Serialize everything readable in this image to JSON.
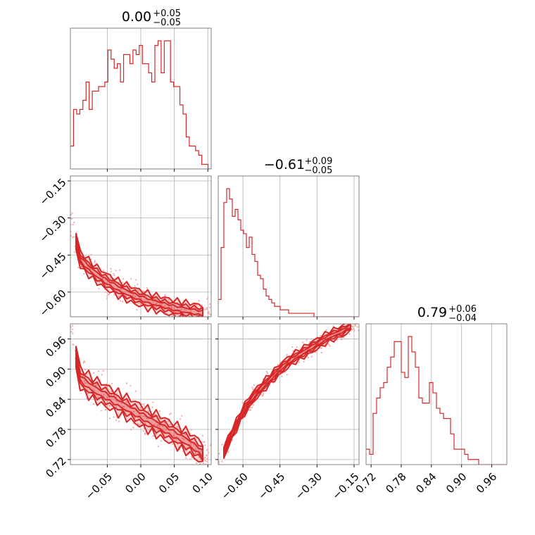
{
  "chart_data": {
    "type": "corner",
    "colors": {
      "line": "#d62728",
      "fill": "#f4c2c2",
      "frame": "#808080",
      "grid": "#b0b0b0"
    },
    "parameters": [
      {
        "title": "0.00",
        "upper": "+0.05",
        "lower": "−0.05",
        "range": [
          -0.105,
          0.105
        ],
        "ticks": [
          -0.05,
          0.0,
          0.05,
          0.1
        ],
        "tick_labels": [
          "−0.05",
          "0.00",
          "0.05",
          "0.10"
        ]
      },
      {
        "title": "−0.61",
        "upper": "+0.09",
        "lower": "−0.05",
        "range": [
          -0.7,
          -0.13
        ],
        "ticks": [
          -0.6,
          -0.45,
          -0.3,
          -0.15
        ],
        "tick_labels": [
          "−0.60",
          "−0.45",
          "−0.30",
          "−0.15"
        ]
      },
      {
        "title": "0.79",
        "upper": "+0.06",
        "lower": "−0.04",
        "range": [
          0.71,
          0.99
        ],
        "ticks": [
          0.72,
          0.78,
          0.84,
          0.9,
          0.96
        ],
        "tick_labels": [
          "0.72",
          "0.78",
          "0.84",
          "0.90",
          "0.96"
        ]
      }
    ],
    "histograms": [
      {
        "param": 0,
        "counts": [
          5,
          13,
          12,
          13,
          15,
          19,
          13,
          17,
          17,
          18,
          18,
          19,
          26,
          24,
          22,
          23,
          19,
          25,
          25,
          23,
          26,
          25,
          27,
          23,
          23,
          21,
          19,
          27,
          28,
          21,
          28,
          28,
          19,
          18,
          18,
          14,
          12,
          7,
          5,
          5,
          4,
          3,
          1,
          1,
          0
        ]
      },
      {
        "param": 1,
        "counts": [
          5,
          20,
          33,
          37,
          34,
          29,
          31,
          28,
          25,
          24,
          20,
          23,
          18,
          16,
          12,
          11,
          8,
          6,
          5,
          4,
          3,
          3,
          2,
          2,
          2,
          1,
          1,
          1,
          1,
          1,
          1,
          1,
          1,
          1,
          0,
          0,
          0,
          0,
          0,
          0,
          0,
          0,
          0,
          0,
          0,
          0,
          0,
          0,
          0,
          0
        ]
      },
      {
        "param": 2,
        "counts": [
          3,
          2,
          10,
          13,
          15,
          16,
          19,
          21,
          24,
          24,
          18,
          17,
          25,
          22,
          19,
          13,
          12,
          12,
          16,
          14,
          11,
          10,
          9,
          9,
          6,
          3,
          3,
          3,
          2,
          1,
          1,
          1,
          0,
          0,
          0,
          0,
          0,
          0,
          0,
          0
        ]
      }
    ],
    "pairs": [
      {
        "x_param": 0,
        "y_param": 1,
        "trend": [
          [
            -0.105,
            -0.3
          ],
          [
            -0.09,
            -0.47
          ],
          [
            -0.07,
            -0.52
          ],
          [
            -0.05,
            -0.56
          ],
          [
            -0.03,
            -0.59
          ],
          [
            -0.01,
            -0.615
          ],
          [
            0.01,
            -0.635
          ],
          [
            0.03,
            -0.65
          ],
          [
            0.05,
            -0.665
          ],
          [
            0.07,
            -0.675
          ],
          [
            0.09,
            -0.685
          ],
          [
            0.105,
            -0.69
          ]
        ],
        "spread": 0.018
      },
      {
        "x_param": 0,
        "y_param": 2,
        "trend": [
          [
            -0.105,
            0.98
          ],
          [
            -0.09,
            0.88
          ],
          [
            -0.07,
            0.86
          ],
          [
            -0.05,
            0.845
          ],
          [
            -0.03,
            0.83
          ],
          [
            -0.01,
            0.815
          ],
          [
            0.01,
            0.8
          ],
          [
            0.03,
            0.785
          ],
          [
            0.05,
            0.77
          ],
          [
            0.07,
            0.755
          ],
          [
            0.09,
            0.735
          ],
          [
            0.105,
            0.715
          ]
        ],
        "spread": 0.012
      },
      {
        "x_param": 1,
        "y_param": 2,
        "trend": [
          [
            -0.7,
            0.71
          ],
          [
            -0.68,
            0.73
          ],
          [
            -0.66,
            0.755
          ],
          [
            -0.64,
            0.775
          ],
          [
            -0.62,
            0.795
          ],
          [
            -0.6,
            0.815
          ],
          [
            -0.58,
            0.83
          ],
          [
            -0.55,
            0.85
          ],
          [
            -0.5,
            0.875
          ],
          [
            -0.45,
            0.9
          ],
          [
            -0.4,
            0.92
          ],
          [
            -0.35,
            0.935
          ],
          [
            -0.3,
            0.95
          ],
          [
            -0.25,
            0.965
          ],
          [
            -0.2,
            0.975
          ],
          [
            -0.15,
            0.99
          ]
        ],
        "spread": 0.006
      }
    ]
  }
}
